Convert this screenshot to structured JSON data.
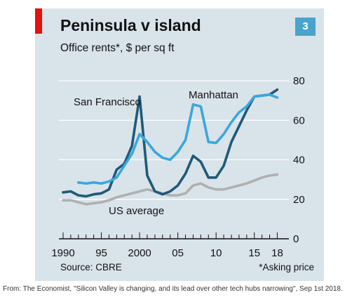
{
  "figure": {
    "title": "Peninsula v island",
    "subtitle": "Office rents*, $ per sq ft",
    "chart_number": "3",
    "source": "Source: CBRE",
    "footnote": "*Asking price",
    "credit": "From: The Economist, \"Silicon Valley is changing, and its lead over other tech hubs narrowing\", Sep 1st 2018.",
    "colors": {
      "background": "#d9e3ea",
      "accent_tag": "#e3120b",
      "badge": "#4aa3c9",
      "gridline": "#ffffff"
    }
  },
  "chart_data": {
    "type": "line",
    "title": "Peninsula v island",
    "subtitle": "Office rents*, $ per sq ft",
    "xlabel": "",
    "ylabel": "",
    "xlim": [
      1990,
      2018.6
    ],
    "ylim": [
      0,
      80
    ],
    "y_ticks": [
      0,
      20,
      40,
      60,
      80
    ],
    "y_axis_side": "right",
    "x_tick_labels": [
      {
        "x": 1990,
        "label": "1990"
      },
      {
        "x": 1995,
        "label": "95"
      },
      {
        "x": 2000,
        "label": "2000"
      },
      {
        "x": 2005,
        "label": "05"
      },
      {
        "x": 2010,
        "label": "10"
      },
      {
        "x": 2015,
        "label": "15"
      },
      {
        "x": 2018,
        "label": "18"
      }
    ],
    "grid": true,
    "series": [
      {
        "name": "US average",
        "color": "#b0b0b0",
        "x": [
          1990,
          1991,
          1992,
          1993,
          1994,
          1995,
          1996,
          1997,
          1998,
          1999,
          2000,
          2001,
          2002,
          2003,
          2004,
          2005,
          2006,
          2007,
          2008,
          2009,
          2010,
          2011,
          2012,
          2013,
          2014,
          2015,
          2016,
          2017,
          2018
        ],
        "y": [
          19.5,
          19.5,
          18.5,
          17.5,
          18,
          18.5,
          19.5,
          21,
          22,
          23,
          24,
          25,
          24,
          23,
          22,
          22,
          23,
          27,
          28,
          26,
          25,
          25,
          26,
          27,
          28,
          29.5,
          31,
          32,
          32.5
        ]
      },
      {
        "name": "San Francisco",
        "color": "#1f5a79",
        "x": [
          1990,
          1991,
          1992,
          1993,
          1994,
          1995,
          1996,
          1997,
          1998,
          1999,
          2000,
          2001,
          2002,
          2003,
          2004,
          2005,
          2006,
          2007,
          2008,
          2009,
          2010,
          2011,
          2012,
          2013,
          2014,
          2015,
          2016,
          2017,
          2018
        ],
        "y": [
          23.5,
          24,
          22,
          21.5,
          22.5,
          23,
          25,
          35,
          38,
          47,
          72,
          32,
          24,
          22.5,
          24,
          27,
          33,
          42,
          39,
          31,
          31,
          37,
          49,
          57,
          65,
          72,
          72.5,
          73,
          75.5
        ]
      },
      {
        "name": "Manhattan",
        "color": "#3ba7dc",
        "x": [
          1992,
          1993,
          1994,
          1995,
          1996,
          1997,
          1998,
          1999,
          2000,
          2001,
          2002,
          2003,
          2004,
          2005,
          2006,
          2007,
          2008,
          2009,
          2010,
          2011,
          2012,
          2013,
          2014,
          2015,
          2016,
          2017,
          2018
        ],
        "y": [
          28.5,
          28,
          28.5,
          28,
          29,
          31,
          37,
          43,
          53,
          49,
          44,
          41,
          40,
          44,
          50,
          68,
          67,
          49,
          48.5,
          53,
          59,
          64,
          67,
          72,
          72.5,
          73,
          71.5
        ]
      }
    ]
  }
}
